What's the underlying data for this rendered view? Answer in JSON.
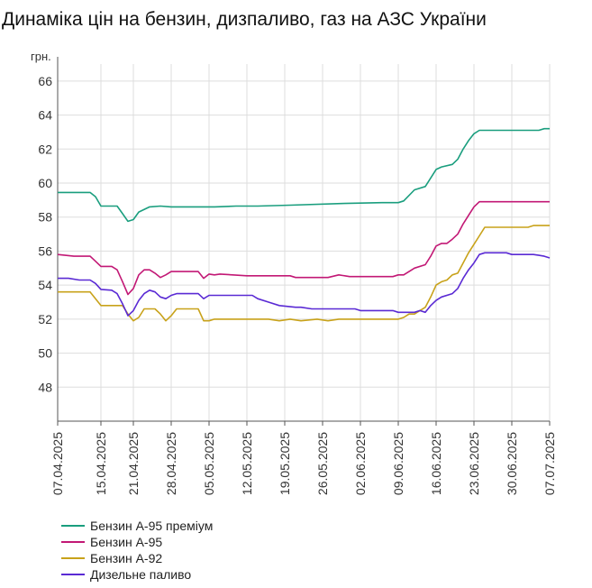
{
  "chart_data": {
    "type": "line",
    "title": "Динаміка цін на бензин, дизпаливо, газ на АЗС України",
    "ylabel": "грн.",
    "xlabel": "",
    "ylim": [
      46,
      67
    ],
    "yticks": [
      48,
      50,
      52,
      54,
      56,
      58,
      60,
      62,
      64,
      66
    ],
    "xlim": [
      "2025-04-07",
      "2025-07-07"
    ],
    "xticks": [
      "07.04.2025",
      "15.04.2025",
      "21.04.2025",
      "28.04.2025",
      "05.05.2025",
      "12.05.2025",
      "19.05.2025",
      "26.05.2025",
      "02.06.2025",
      "09.06.2025",
      "16.06.2025",
      "23.06.2025",
      "30.06.2025",
      "07.07.2025"
    ],
    "xtick_dates": [
      "2025-04-07",
      "2025-04-15",
      "2025-04-21",
      "2025-04-28",
      "2025-05-05",
      "2025-05-12",
      "2025-05-19",
      "2025-05-26",
      "2025-06-02",
      "2025-06-09",
      "2025-06-16",
      "2025-06-23",
      "2025-06-30",
      "2025-07-07"
    ],
    "grid": true,
    "legend_position": "bottom-left",
    "series": [
      {
        "name": "Бензин А-95 преміум",
        "color": "#1a9e7e",
        "points": [
          [
            "2025-04-07",
            59.45
          ],
          [
            "2025-04-13",
            59.45
          ],
          [
            "2025-04-14",
            59.2
          ],
          [
            "2025-04-15",
            58.65
          ],
          [
            "2025-04-18",
            58.65
          ],
          [
            "2025-04-19",
            58.2
          ],
          [
            "2025-04-20",
            57.75
          ],
          [
            "2025-04-21",
            57.85
          ],
          [
            "2025-04-22",
            58.3
          ],
          [
            "2025-04-24",
            58.6
          ],
          [
            "2025-04-26",
            58.65
          ],
          [
            "2025-04-28",
            58.6
          ],
          [
            "2025-04-30",
            58.6
          ],
          [
            "2025-05-06",
            58.6
          ],
          [
            "2025-05-10",
            58.65
          ],
          [
            "2025-05-14",
            58.65
          ],
          [
            "2025-05-20",
            58.7
          ],
          [
            "2025-05-30",
            58.8
          ],
          [
            "2025-06-06",
            58.85
          ],
          [
            "2025-06-09",
            58.85
          ],
          [
            "2025-06-10",
            58.95
          ],
          [
            "2025-06-12",
            59.6
          ],
          [
            "2025-06-14",
            59.8
          ],
          [
            "2025-06-16",
            60.8
          ],
          [
            "2025-06-17",
            60.95
          ],
          [
            "2025-06-19",
            61.1
          ],
          [
            "2025-06-20",
            61.4
          ],
          [
            "2025-06-21",
            62.0
          ],
          [
            "2025-06-22",
            62.5
          ],
          [
            "2025-06-23",
            62.9
          ],
          [
            "2025-06-24",
            63.1
          ],
          [
            "2025-07-05",
            63.1
          ],
          [
            "2025-07-06",
            63.2
          ],
          [
            "2025-07-07",
            63.2
          ]
        ]
      },
      {
        "name": "Бензин А-95",
        "color": "#c21875",
        "points": [
          [
            "2025-04-07",
            55.8
          ],
          [
            "2025-04-10",
            55.7
          ],
          [
            "2025-04-13",
            55.7
          ],
          [
            "2025-04-14",
            55.4
          ],
          [
            "2025-04-15",
            55.1
          ],
          [
            "2025-04-17",
            55.1
          ],
          [
            "2025-04-18",
            54.9
          ],
          [
            "2025-04-19",
            54.2
          ],
          [
            "2025-04-20",
            53.45
          ],
          [
            "2025-04-21",
            53.8
          ],
          [
            "2025-04-22",
            54.6
          ],
          [
            "2025-04-23",
            54.9
          ],
          [
            "2025-04-24",
            54.9
          ],
          [
            "2025-04-25",
            54.7
          ],
          [
            "2025-04-26",
            54.45
          ],
          [
            "2025-04-27",
            54.6
          ],
          [
            "2025-04-28",
            54.8
          ],
          [
            "2025-05-03",
            54.8
          ],
          [
            "2025-05-04",
            54.4
          ],
          [
            "2025-05-05",
            54.65
          ],
          [
            "2025-05-06",
            54.6
          ],
          [
            "2025-05-07",
            54.65
          ],
          [
            "2025-05-12",
            54.55
          ],
          [
            "2025-05-20",
            54.55
          ],
          [
            "2025-05-21",
            54.45
          ],
          [
            "2025-05-27",
            54.45
          ],
          [
            "2025-05-29",
            54.6
          ],
          [
            "2025-05-31",
            54.5
          ],
          [
            "2025-06-08",
            54.5
          ],
          [
            "2025-06-09",
            54.6
          ],
          [
            "2025-06-10",
            54.6
          ],
          [
            "2025-06-12",
            55.0
          ],
          [
            "2025-06-14",
            55.2
          ],
          [
            "2025-06-15",
            55.7
          ],
          [
            "2025-06-16",
            56.3
          ],
          [
            "2025-06-17",
            56.45
          ],
          [
            "2025-06-18",
            56.45
          ],
          [
            "2025-06-19",
            56.7
          ],
          [
            "2025-06-20",
            57.0
          ],
          [
            "2025-06-21",
            57.6
          ],
          [
            "2025-06-22",
            58.1
          ],
          [
            "2025-06-23",
            58.6
          ],
          [
            "2025-06-24",
            58.9
          ],
          [
            "2025-07-07",
            58.9
          ]
        ]
      },
      {
        "name": "Бензин А-92",
        "color": "#c8a21a",
        "points": [
          [
            "2025-04-07",
            53.6
          ],
          [
            "2025-04-13",
            53.6
          ],
          [
            "2025-04-15",
            52.8
          ],
          [
            "2025-04-19",
            52.8
          ],
          [
            "2025-04-20",
            52.3
          ],
          [
            "2025-04-21",
            51.9
          ],
          [
            "2025-04-22",
            52.1
          ],
          [
            "2025-04-23",
            52.6
          ],
          [
            "2025-04-25",
            52.6
          ],
          [
            "2025-04-26",
            52.3
          ],
          [
            "2025-04-27",
            51.9
          ],
          [
            "2025-04-28",
            52.2
          ],
          [
            "2025-04-29",
            52.6
          ],
          [
            "2025-05-03",
            52.6
          ],
          [
            "2025-05-04",
            51.9
          ],
          [
            "2025-05-05",
            51.9
          ],
          [
            "2025-05-06",
            52.0
          ],
          [
            "2025-05-16",
            52.0
          ],
          [
            "2025-05-18",
            51.9
          ],
          [
            "2025-05-20",
            52.0
          ],
          [
            "2025-05-22",
            51.9
          ],
          [
            "2025-05-25",
            52.0
          ],
          [
            "2025-05-27",
            51.9
          ],
          [
            "2025-05-29",
            52.0
          ],
          [
            "2025-06-09",
            52.0
          ],
          [
            "2025-06-10",
            52.1
          ],
          [
            "2025-06-11",
            52.3
          ],
          [
            "2025-06-12",
            52.3
          ],
          [
            "2025-06-13",
            52.5
          ],
          [
            "2025-06-14",
            52.7
          ],
          [
            "2025-06-15",
            53.3
          ],
          [
            "2025-06-16",
            54.0
          ],
          [
            "2025-06-17",
            54.2
          ],
          [
            "2025-06-18",
            54.3
          ],
          [
            "2025-06-19",
            54.6
          ],
          [
            "2025-06-20",
            54.7
          ],
          [
            "2025-06-21",
            55.3
          ],
          [
            "2025-06-22",
            55.9
          ],
          [
            "2025-06-23",
            56.4
          ],
          [
            "2025-06-24",
            56.9
          ],
          [
            "2025-06-25",
            57.4
          ],
          [
            "2025-07-03",
            57.4
          ],
          [
            "2025-07-04",
            57.5
          ],
          [
            "2025-07-07",
            57.5
          ]
        ]
      },
      {
        "name": "Дизельне паливо",
        "color": "#5a2ad4",
        "points": [
          [
            "2025-04-07",
            54.4
          ],
          [
            "2025-04-09",
            54.4
          ],
          [
            "2025-04-11",
            54.3
          ],
          [
            "2025-04-13",
            54.3
          ],
          [
            "2025-04-14",
            54.1
          ],
          [
            "2025-04-15",
            53.75
          ],
          [
            "2025-04-17",
            53.7
          ],
          [
            "2025-04-18",
            53.5
          ],
          [
            "2025-04-19",
            52.9
          ],
          [
            "2025-04-20",
            52.2
          ],
          [
            "2025-04-21",
            52.5
          ],
          [
            "2025-04-22",
            53.1
          ],
          [
            "2025-04-23",
            53.5
          ],
          [
            "2025-04-24",
            53.7
          ],
          [
            "2025-04-25",
            53.6
          ],
          [
            "2025-04-26",
            53.3
          ],
          [
            "2025-04-27",
            53.2
          ],
          [
            "2025-04-28",
            53.4
          ],
          [
            "2025-04-29",
            53.5
          ],
          [
            "2025-05-03",
            53.5
          ],
          [
            "2025-05-04",
            53.2
          ],
          [
            "2025-05-05",
            53.4
          ],
          [
            "2025-05-13",
            53.4
          ],
          [
            "2025-05-14",
            53.2
          ],
          [
            "2025-05-16",
            53.0
          ],
          [
            "2025-05-18",
            52.8
          ],
          [
            "2025-05-21",
            52.7
          ],
          [
            "2025-05-22",
            52.7
          ],
          [
            "2025-05-24",
            52.6
          ],
          [
            "2025-06-01",
            52.6
          ],
          [
            "2025-06-02",
            52.5
          ],
          [
            "2025-06-08",
            52.5
          ],
          [
            "2025-06-09",
            52.4
          ],
          [
            "2025-06-12",
            52.4
          ],
          [
            "2025-06-13",
            52.5
          ],
          [
            "2025-06-14",
            52.4
          ],
          [
            "2025-06-15",
            52.8
          ],
          [
            "2025-06-16",
            53.1
          ],
          [
            "2025-06-17",
            53.3
          ],
          [
            "2025-06-19",
            53.5
          ],
          [
            "2025-06-20",
            53.8
          ],
          [
            "2025-06-21",
            54.4
          ],
          [
            "2025-06-22",
            54.9
          ],
          [
            "2025-06-23",
            55.3
          ],
          [
            "2025-06-24",
            55.8
          ],
          [
            "2025-06-25",
            55.9
          ],
          [
            "2025-06-29",
            55.9
          ],
          [
            "2025-06-30",
            55.8
          ],
          [
            "2025-07-04",
            55.8
          ],
          [
            "2025-07-05",
            55.75
          ],
          [
            "2025-07-06",
            55.7
          ],
          [
            "2025-07-07",
            55.6
          ]
        ]
      }
    ]
  }
}
